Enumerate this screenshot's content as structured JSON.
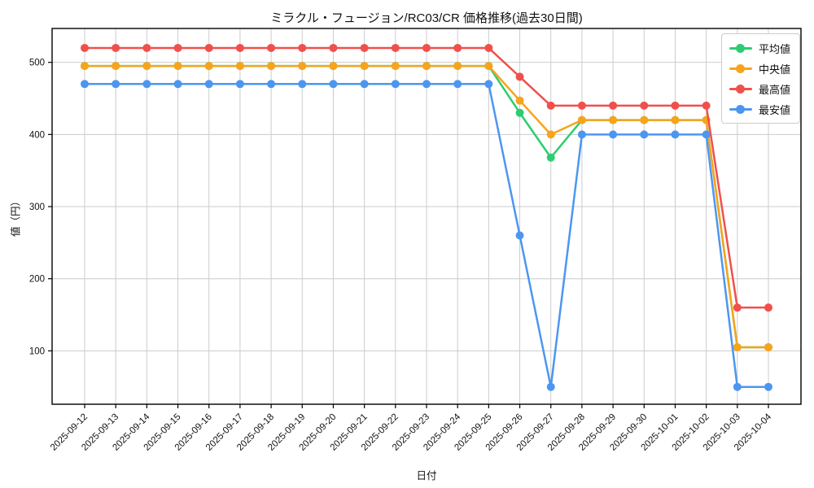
{
  "chart_data": {
    "type": "line",
    "title": "ミラクル・フュージョン/RC03/CR 価格推移(過去30日間)",
    "xlabel": "日付",
    "ylabel": "値（円）",
    "categories": [
      "2025-09-12",
      "2025-09-13",
      "2025-09-14",
      "2025-09-15",
      "2025-09-16",
      "2025-09-17",
      "2025-09-18",
      "2025-09-19",
      "2025-09-20",
      "2025-09-21",
      "2025-09-22",
      "2025-09-23",
      "2025-09-24",
      "2025-09-25",
      "2025-09-26",
      "2025-09-27",
      "2025-09-28",
      "2025-09-29",
      "2025-09-30",
      "2025-10-01",
      "2025-10-02",
      "2025-10-03",
      "2025-10-04"
    ],
    "series": [
      {
        "name": "平均値",
        "color": "#2ecc71",
        "values": [
          495,
          495,
          495,
          495,
          495,
          495,
          495,
          495,
          495,
          495,
          495,
          495,
          495,
          495,
          430,
          368,
          420,
          420,
          420,
          420,
          420,
          105,
          105
        ]
      },
      {
        "name": "中央値",
        "color": "#f7a41c",
        "values": [
          495,
          495,
          495,
          495,
          495,
          495,
          495,
          495,
          495,
          495,
          495,
          495,
          495,
          495,
          447,
          400,
          420,
          420,
          420,
          420,
          420,
          105,
          105
        ]
      },
      {
        "name": "最高値",
        "color": "#f0504c",
        "values": [
          520,
          520,
          520,
          520,
          520,
          520,
          520,
          520,
          520,
          520,
          520,
          520,
          520,
          520,
          480,
          440,
          440,
          440,
          440,
          440,
          440,
          160,
          160
        ]
      },
      {
        "name": "最安値",
        "color": "#4d96f0",
        "values": [
          470,
          470,
          470,
          470,
          470,
          470,
          470,
          470,
          470,
          470,
          470,
          470,
          470,
          470,
          260,
          50,
          400,
          400,
          400,
          400,
          400,
          50,
          50
        ]
      }
    ],
    "ylim": [
      26,
      547
    ],
    "y_ticks": [
      100,
      200,
      300,
      400,
      500
    ],
    "x_tick_rotation": 45,
    "grid": true,
    "legend_position": "upper right"
  },
  "style": {
    "grid_color": "#cccccc",
    "spine_color": "#000000",
    "tick_color": "#000000",
    "background": "#ffffff"
  }
}
